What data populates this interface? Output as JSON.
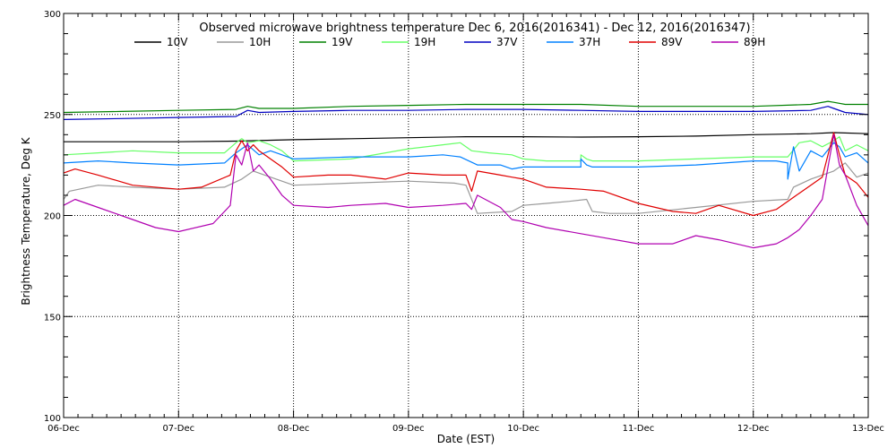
{
  "chart_data": {
    "type": "line",
    "title": "Observed microwave brightness temperature Dec  6, 2016(2016341) - Dec 12, 2016(2016347)",
    "xlabel": "Date (EST)",
    "ylabel": "Brightness Temperature, Deg K",
    "x_ticks": [
      "06-Dec",
      "07-Dec",
      "08-Dec",
      "09-Dec",
      "10-Dec",
      "11-Dec",
      "12-Dec",
      "13-Dec"
    ],
    "y_ticks": [
      "100",
      "150",
      "200",
      "250",
      "300"
    ],
    "xlim": [
      0,
      7
    ],
    "ylim": [
      100,
      300
    ],
    "x_unit": "days since 06-Dec 00:00",
    "grid": "dotted",
    "legend_position": "top",
    "series": [
      {
        "name": "10V",
        "color": "#000000",
        "x": [
          0,
          0.5,
          1,
          1.5,
          2,
          2.5,
          3,
          3.5,
          4,
          4.5,
          5,
          5.5,
          6,
          6.5,
          6.7,
          7
        ],
        "y": [
          236.5,
          236.5,
          236.5,
          236.8,
          237.5,
          238,
          238.5,
          239,
          239,
          238.8,
          239,
          239.3,
          240,
          240.5,
          241,
          240.5
        ]
      },
      {
        "name": "10H",
        "color": "#999999",
        "x": [
          0,
          0.05,
          0.3,
          0.6,
          1,
          1.4,
          1.55,
          1.65,
          1.75,
          2,
          2.5,
          3,
          3.4,
          3.5,
          3.55,
          3.6,
          3.9,
          4,
          4.2,
          4.4,
          4.55,
          4.6,
          4.75,
          5,
          5.5,
          6,
          6.3,
          6.35,
          6.5,
          6.7,
          6.8,
          6.9,
          7
        ],
        "y": [
          208,
          212,
          215,
          214,
          213,
          214,
          218,
          222,
          220,
          215,
          216,
          217,
          216,
          215,
          208,
          201,
          202,
          205,
          206,
          207,
          208,
          202,
          201,
          201,
          204,
          207,
          208,
          214,
          218,
          222,
          226,
          219,
          221
        ]
      },
      {
        "name": "19V",
        "color": "#008000",
        "x": [
          0,
          0.5,
          1,
          1.5,
          1.6,
          1.7,
          2,
          2.5,
          3,
          3.5,
          4,
          4.5,
          5,
          5.5,
          6,
          6.5,
          6.65,
          6.7,
          6.8,
          7
        ],
        "y": [
          251,
          251.5,
          252,
          252.5,
          254,
          253,
          253,
          254,
          254.5,
          255,
          255,
          255,
          254,
          254,
          254,
          255,
          256.5,
          256,
          255,
          255
        ]
      },
      {
        "name": "19H",
        "color": "#66ff66",
        "x": [
          0,
          0.3,
          0.6,
          1,
          1.4,
          1.5,
          1.55,
          1.6,
          1.7,
          1.8,
          1.9,
          2,
          2.5,
          3,
          3.3,
          3.45,
          3.55,
          3.7,
          3.9,
          4,
          4.2,
          4.5,
          4.5,
          4.55,
          4.6,
          5,
          5.5,
          6,
          6.3,
          6.4,
          6.5,
          6.6,
          6.7,
          6.75,
          6.8,
          6.9,
          7
        ],
        "y": [
          230,
          231,
          232,
          231,
          231,
          236,
          238,
          236,
          237,
          235,
          232,
          227,
          228,
          233,
          235,
          236,
          232,
          231,
          230,
          228,
          227,
          227,
          230,
          228,
          227,
          227,
          228,
          229,
          229,
          236,
          237,
          234,
          237,
          239,
          232,
          235,
          232
        ]
      },
      {
        "name": "37V",
        "color": "#0000c0",
        "x": [
          0,
          0.5,
          1,
          1.5,
          1.6,
          1.7,
          2,
          2.5,
          3,
          3.5,
          4,
          4.5,
          5,
          5.5,
          6,
          6.5,
          6.65,
          6.7,
          6.8,
          7
        ],
        "y": [
          247.5,
          248,
          248.5,
          249,
          252,
          251,
          251.5,
          252,
          252,
          252.5,
          252.5,
          252,
          251.5,
          251.5,
          251.5,
          252,
          254,
          253,
          251,
          250
        ]
      },
      {
        "name": "37H",
        "color": "#0080ff",
        "x": [
          0,
          0.3,
          0.6,
          1,
          1.4,
          1.5,
          1.55,
          1.6,
          1.7,
          1.8,
          1.9,
          2,
          2.5,
          3,
          3.3,
          3.45,
          3.6,
          3.8,
          3.9,
          4,
          4.2,
          4.5,
          4.5,
          4.55,
          4.6,
          5,
          5.5,
          6,
          6.2,
          6.3,
          6.3,
          6.35,
          6.4,
          6.5,
          6.6,
          6.7,
          6.75,
          6.8,
          6.9,
          7
        ],
        "y": [
          226,
          227,
          226,
          225,
          226,
          231,
          233,
          235,
          230,
          232,
          230,
          228,
          229,
          229,
          230,
          229,
          225,
          225,
          223,
          224,
          224,
          224,
          228,
          225,
          224,
          224,
          225,
          227,
          227,
          226,
          218,
          234,
          222,
          232,
          229,
          236,
          234,
          229,
          231,
          226
        ]
      },
      {
        "name": "89V",
        "color": "#e00000",
        "x": [
          0,
          0.1,
          0.3,
          0.6,
          1,
          1.2,
          1.45,
          1.5,
          1.55,
          1.6,
          1.65,
          1.7,
          1.8,
          1.9,
          2,
          2.3,
          2.5,
          2.8,
          3,
          3.3,
          3.5,
          3.55,
          3.6,
          3.8,
          3.9,
          4,
          4.2,
          4.5,
          4.7,
          5,
          5.3,
          5.5,
          5.7,
          6,
          6.2,
          6.3,
          6.4,
          6.5,
          6.6,
          6.7,
          6.75,
          6.8,
          6.9,
          7
        ],
        "y": [
          221,
          223,
          220,
          215,
          213,
          214,
          220,
          232,
          237,
          232,
          235,
          232,
          228,
          224,
          219,
          220,
          220,
          218,
          221,
          220,
          220,
          212,
          222,
          220,
          219,
          218,
          214,
          213,
          212,
          206,
          202,
          201,
          205,
          200,
          203,
          207,
          211,
          215,
          219,
          241,
          230,
          220,
          216,
          209
        ]
      },
      {
        "name": "89H",
        "color": "#b000b0",
        "x": [
          0,
          0.1,
          0.3,
          0.6,
          0.8,
          1,
          1.3,
          1.45,
          1.5,
          1.55,
          1.6,
          1.65,
          1.7,
          1.8,
          1.9,
          2,
          2.3,
          2.5,
          2.8,
          3,
          3.3,
          3.5,
          3.55,
          3.6,
          3.8,
          3.9,
          4,
          4.2,
          4.5,
          4.7,
          5,
          5.3,
          5.5,
          5.7,
          6,
          6.2,
          6.3,
          6.4,
          6.5,
          6.6,
          6.7,
          6.75,
          6.8,
          6.9,
          7
        ],
        "y": [
          205,
          208,
          204,
          198,
          194,
          192,
          196,
          205,
          230,
          225,
          236,
          222,
          225,
          218,
          210,
          205,
          204,
          205,
          206,
          204,
          205,
          206,
          203,
          210,
          204,
          198,
          197,
          194,
          191,
          189,
          186,
          186,
          190,
          188,
          184,
          186,
          189,
          193,
          200,
          208,
          240,
          225,
          220,
          205,
          195
        ]
      }
    ]
  }
}
